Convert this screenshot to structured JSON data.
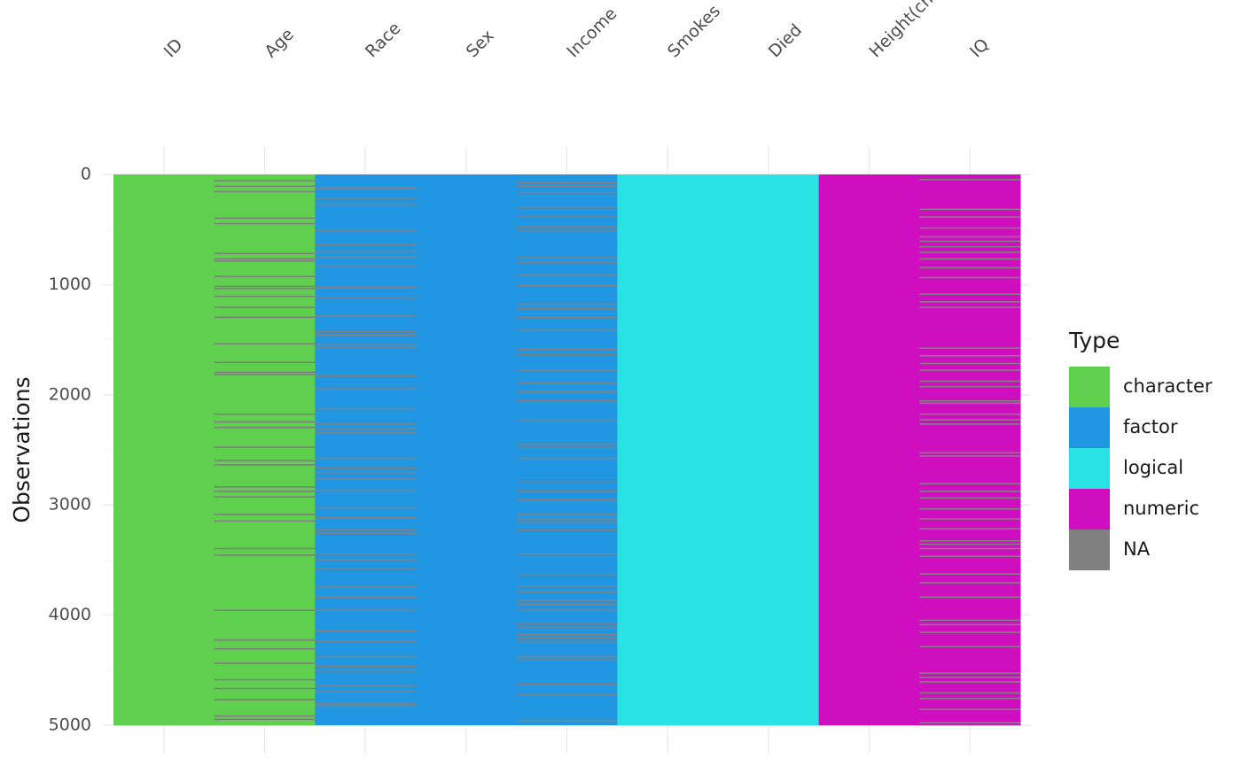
{
  "chart_data": {
    "type": "missingness",
    "y_label": "Observations",
    "ylim": [
      0,
      5000
    ],
    "yticks": [
      0,
      1000,
      2000,
      3000,
      4000,
      5000
    ],
    "grid": true,
    "legend_title": "Type",
    "types": [
      "character",
      "factor",
      "logical",
      "numeric",
      "NA"
    ],
    "colors": [
      "#5ed04e",
      "#2196e3",
      "#29e2e3",
      "#cf0ebf",
      "#808080"
    ],
    "columns": [
      {
        "name": "ID",
        "type": "character",
        "na_rows": []
      },
      {
        "name": "Age",
        "type": "character",
        "na_rows": [
          50,
          100,
          150,
          390,
          440,
          710,
          760,
          780,
          920,
          1010,
          1030,
          1100,
          1200,
          1290,
          1530,
          1700,
          1790,
          1810,
          2170,
          2240,
          2290,
          2470,
          2590,
          2630,
          2830,
          2870,
          2920,
          3080,
          3140,
          3390,
          3450,
          3950,
          4220,
          4300,
          4430,
          4580,
          4660,
          4760,
          4910,
          4940
        ]
      },
      {
        "name": "Race",
        "type": "factor",
        "na_rows": [
          120,
          210,
          270,
          500,
          630,
          690,
          740,
          820,
          1020,
          1110,
          1280,
          1420,
          1450,
          1540,
          1570,
          1820,
          1940,
          2120,
          2260,
          2300,
          2340,
          2570,
          2660,
          2700,
          2760,
          2860,
          3020,
          3110,
          3220,
          3250,
          3440,
          3490,
          3570,
          3740,
          3830,
          3950,
          4140,
          4230,
          4370,
          4460,
          4500,
          4640,
          4690,
          4800,
          4820
        ]
      },
      {
        "name": "Sex",
        "type": "factor",
        "na_rows": []
      },
      {
        "name": "Income",
        "type": "factor",
        "na_rows": [
          70,
          100,
          160,
          290,
          370,
          470,
          510,
          750,
          790,
          910,
          1000,
          1170,
          1210,
          1290,
          1410,
          1580,
          1630,
          1770,
          1890,
          1970,
          2050,
          2230,
          2440,
          2460,
          2570,
          2780,
          2870,
          2950,
          3080,
          3120,
          3150,
          3220,
          3440,
          3630,
          3730,
          3780,
          3860,
          3900,
          3950,
          4070,
          4110,
          4170,
          4200,
          4240,
          4370,
          4400,
          4620,
          4720,
          4950
        ]
      },
      {
        "name": "Smokes",
        "type": "logical",
        "na_rows": []
      },
      {
        "name": "Died",
        "type": "logical",
        "na_rows": []
      },
      {
        "name": "Height(cm)",
        "type": "numeric",
        "na_rows": []
      },
      {
        "name": "IQ",
        "type": "numeric",
        "na_rows": [
          40,
          310,
          380,
          480,
          560,
          600,
          650,
          700,
          760,
          840,
          930,
          1080,
          1150,
          1200,
          1570,
          1640,
          1710,
          1770,
          1870,
          1920,
          2050,
          2070,
          2170,
          2220,
          2260,
          2520,
          2550,
          2800,
          2870,
          2930,
          3030,
          3120,
          3210,
          3320,
          3350,
          3390,
          3460,
          3620,
          3700,
          3830,
          4040,
          4080,
          4150,
          4280,
          4520,
          4560,
          4600,
          4700,
          4750,
          4850,
          4970
        ]
      }
    ]
  }
}
